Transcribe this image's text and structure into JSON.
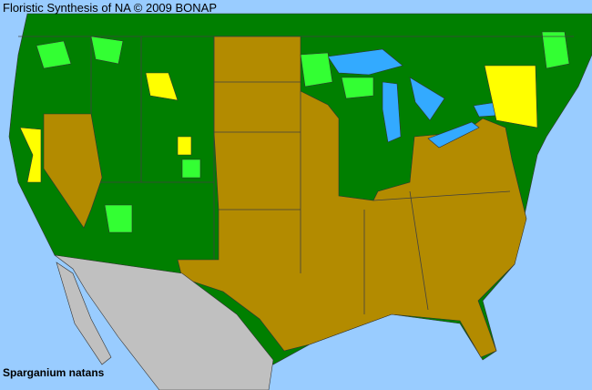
{
  "header": {
    "title": "Floristic Synthesis of NA © 2009 BONAP"
  },
  "map": {
    "species": "Sparganium natans",
    "colors": {
      "ocean": "#99ccff",
      "present_native": "#007f00",
      "absent_in_state": "#b38b00",
      "county_present_alt": "#33ff33",
      "county_rare": "#ffff00",
      "outside_area": "#c0c0c0",
      "lakes": "#33aaff",
      "borders": "#404040"
    }
  }
}
